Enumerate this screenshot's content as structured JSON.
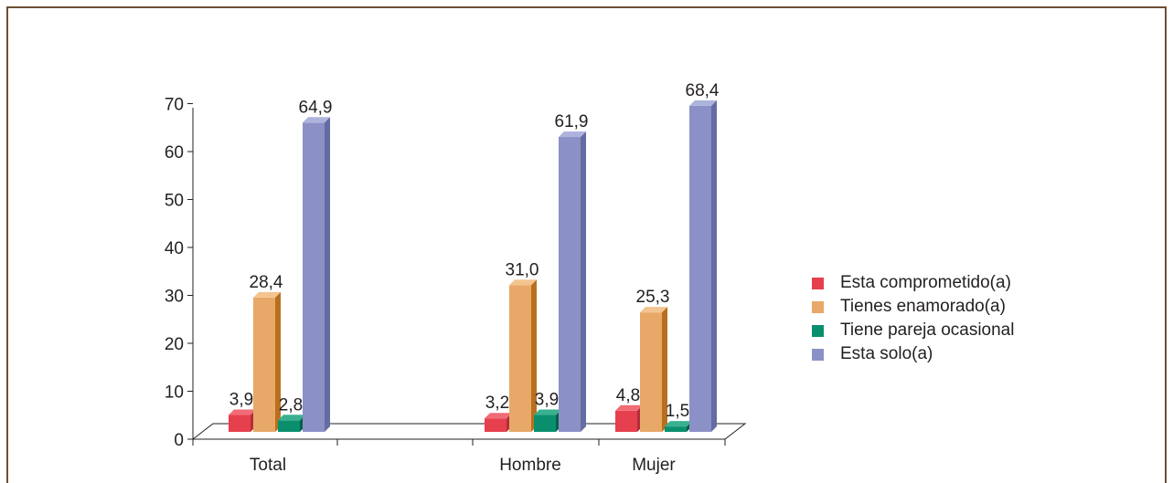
{
  "chart_data": {
    "type": "bar",
    "categories": [
      "Total",
      "Hombre",
      "Mujer"
    ],
    "series": [
      {
        "name": "Esta comprometido(a)",
        "values": [
          3.9,
          3.2,
          4.8
        ],
        "color": "#e6404e",
        "side": "#b22d39",
        "top": "#f06b76"
      },
      {
        "name": "Tienes enamorado(a)",
        "values": [
          28.4,
          31.0,
          25.3
        ],
        "color": "#e8a868",
        "side": "#b8701e",
        "top": "#f3c48f"
      },
      {
        "name": "Tiene pareja ocasional",
        "values": [
          2.8,
          3.9,
          1.5
        ],
        "color": "#0a8f6e",
        "side": "#056048",
        "top": "#3ab090"
      },
      {
        "name": "Esta solo(a)",
        "values": [
          64.9,
          61.9,
          68.4
        ],
        "color": "#8b91c7",
        "side": "#656ba3",
        "top": "#aeb3dc"
      }
    ],
    "data_labels": [
      [
        "3,9",
        "3,2",
        "4,8"
      ],
      [
        "28,4",
        "31,0",
        "25,3"
      ],
      [
        "2,8",
        "3,9",
        "1,5"
      ],
      [
        "64,9",
        "61,9",
        "68,4"
      ]
    ],
    "yticks": [
      "0",
      "10",
      "20",
      "30",
      "40",
      "50",
      "60",
      "70"
    ],
    "ylim": [
      0,
      70
    ],
    "legend_position": "right",
    "grid": false
  }
}
